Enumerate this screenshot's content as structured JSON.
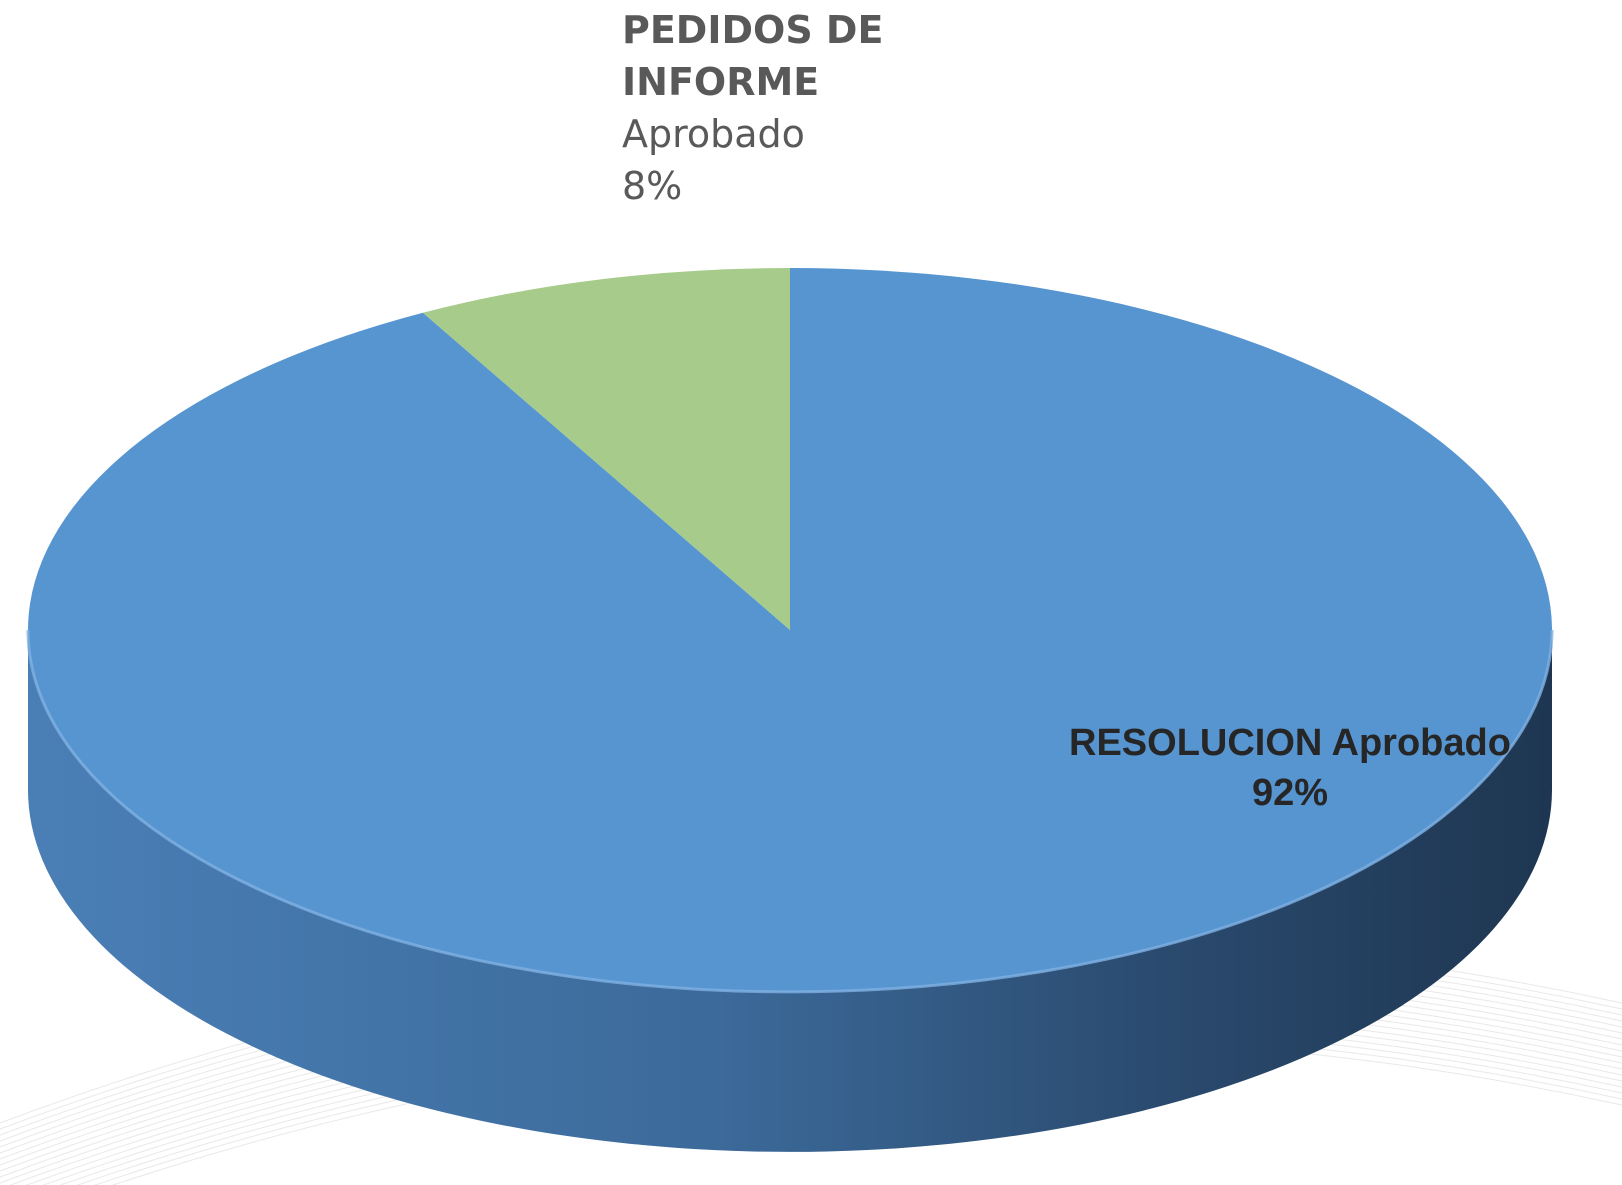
{
  "chart_data": {
    "type": "pie",
    "style": "3d",
    "title": "",
    "categories": [
      "RESOLUCION",
      "PEDIDOS DE INFORME"
    ],
    "series": [
      {
        "name": "Aprobado",
        "values": [
          92,
          8
        ]
      }
    ],
    "slices": [
      {
        "category": "RESOLUCION",
        "series": "Aprobado",
        "value": 92,
        "percent_label": "92%",
        "color": "#5795d1"
      },
      {
        "category": "PEDIDOS DE INFORME",
        "series": "Aprobado",
        "value": 8,
        "percent_label": "8%",
        "color": "#a6cb8a"
      }
    ],
    "legend": "none"
  },
  "labels": {
    "small_category": "PEDIDOS DE INFORME",
    "small_series": "Aprobado",
    "small_percent": "8%",
    "large_category": "RESOLUCION",
    "large_series": "Aprobado",
    "large_percent": "92%"
  }
}
